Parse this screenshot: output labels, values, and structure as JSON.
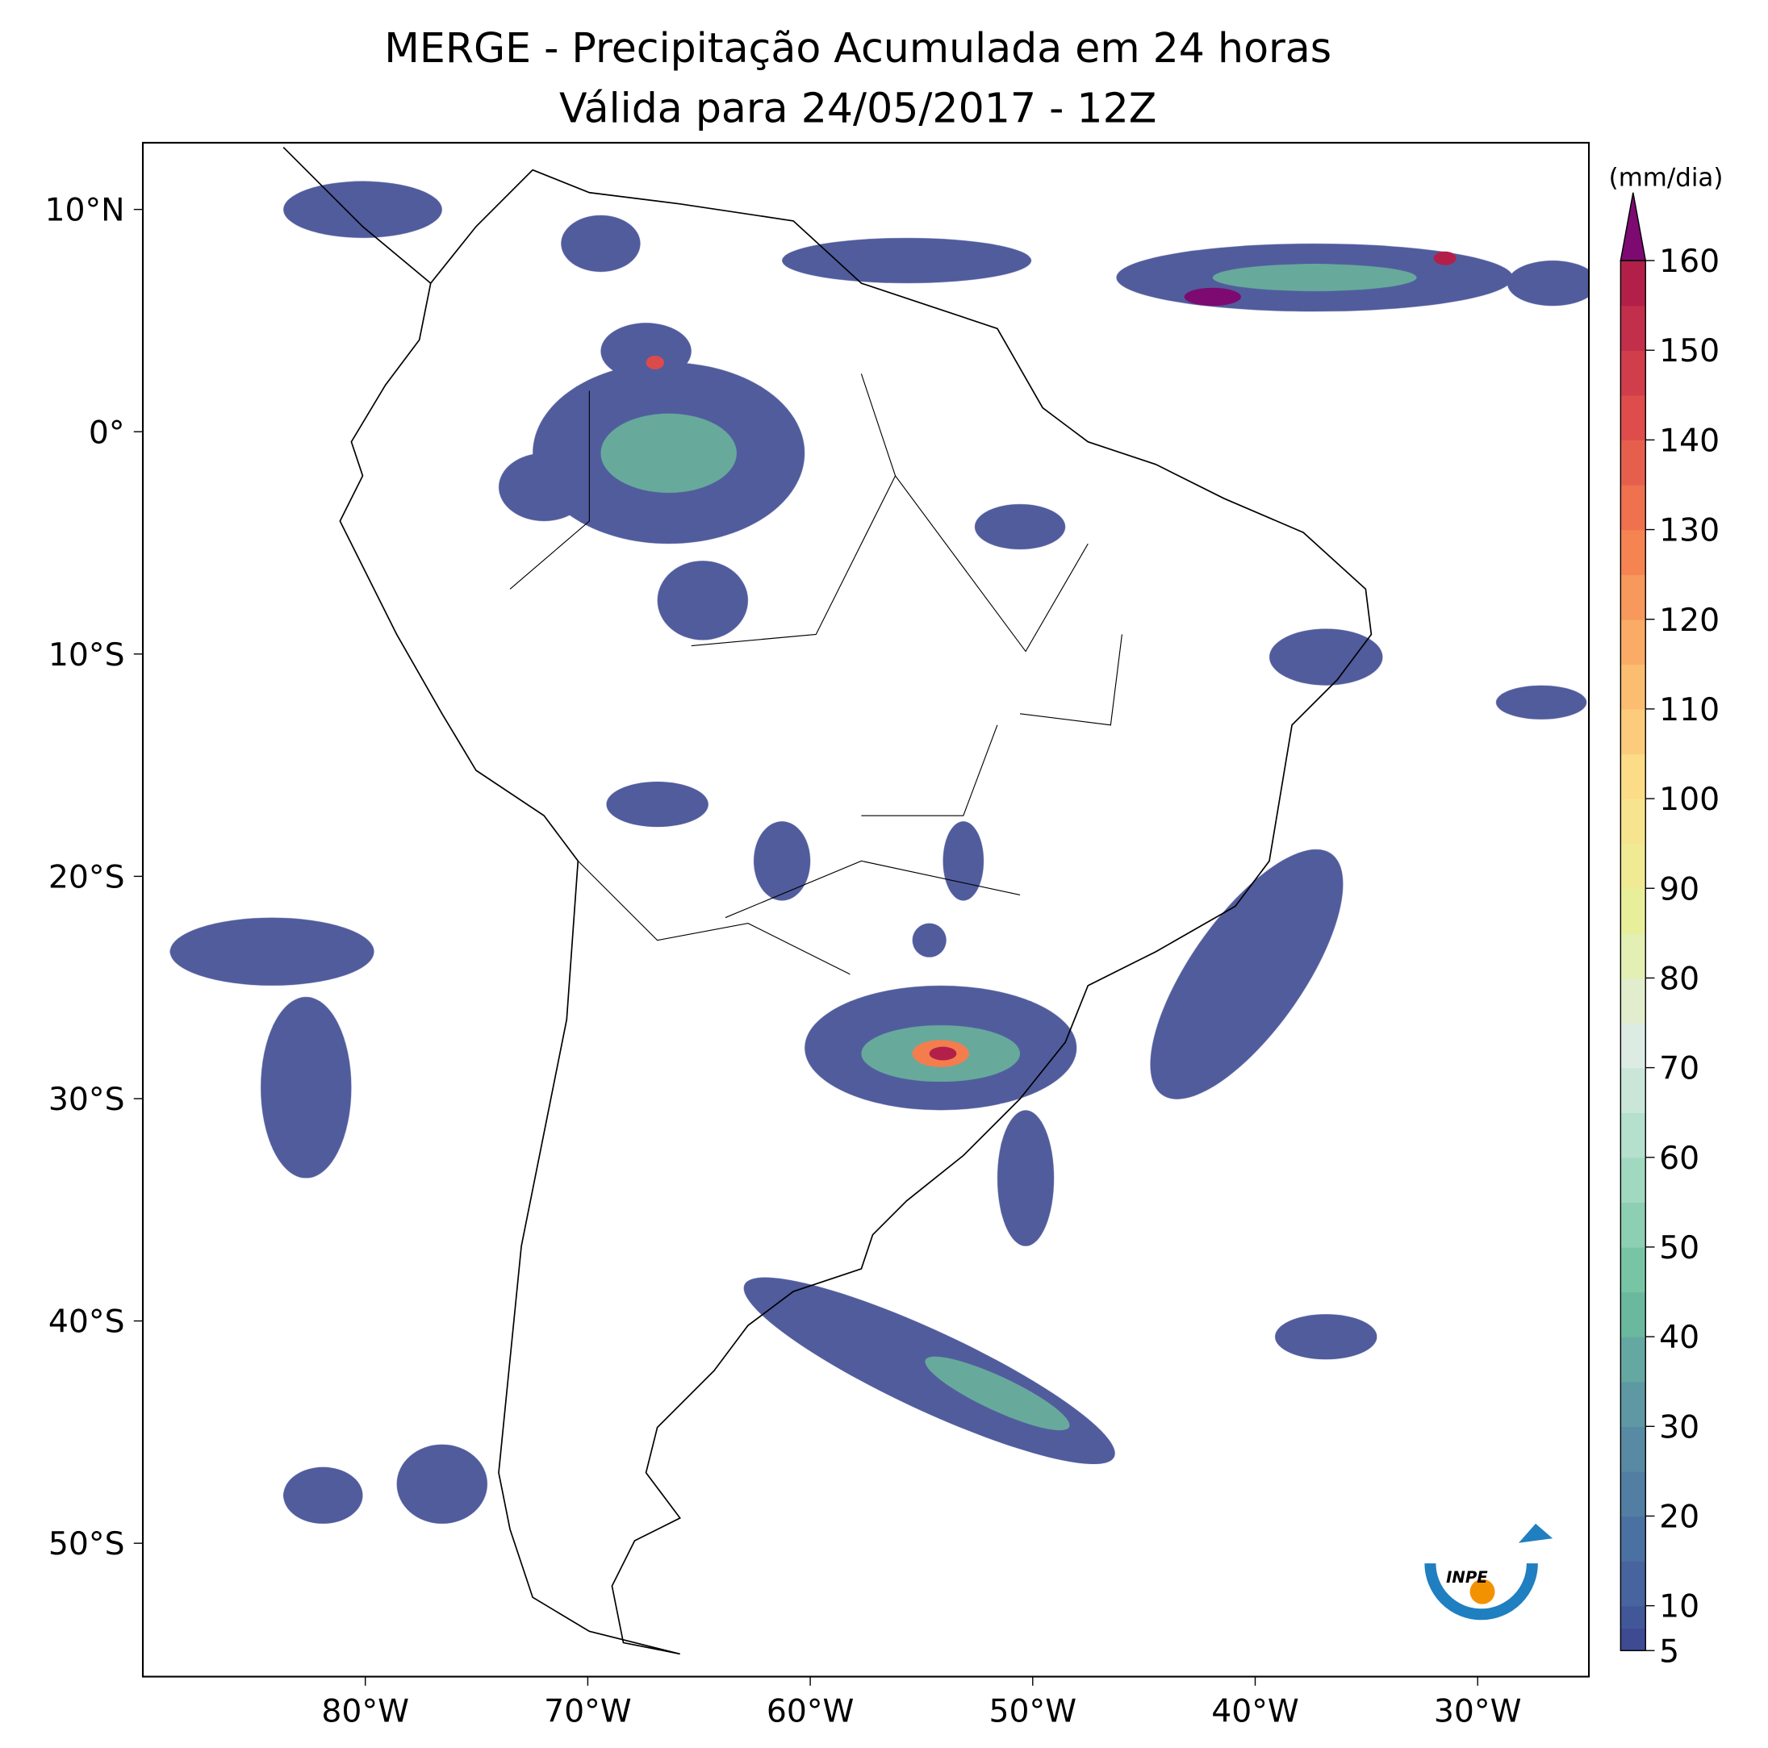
{
  "title": [
    "MERGE - Precipitação Acumulada em 24 horas",
    "Válida para 24/05/2017 - 12Z"
  ],
  "map": {
    "xlim": [
      -90,
      -25
    ],
    "ylim": [
      -56,
      13
    ],
    "xticks": [
      {
        "value": -80,
        "label": "80°W"
      },
      {
        "value": -70,
        "label": "70°W"
      },
      {
        "value": -60,
        "label": "60°W"
      },
      {
        "value": -50,
        "label": "50°W"
      },
      {
        "value": -40,
        "label": "40°W"
      },
      {
        "value": -30,
        "label": "30°W"
      }
    ],
    "yticks": [
      {
        "value": 10,
        "label": "10°N"
      },
      {
        "value": 0,
        "label": "0°"
      },
      {
        "value": -10,
        "label": "10°S"
      },
      {
        "value": -20,
        "label": "20°S"
      },
      {
        "value": -30,
        "label": "30°S"
      },
      {
        "value": -40,
        "label": "40°S"
      },
      {
        "value": -50,
        "label": "50°S"
      }
    ]
  },
  "colorbar": {
    "label": "(mm/dia)",
    "ticks": [
      5,
      10,
      20,
      30,
      40,
      50,
      60,
      70,
      80,
      90,
      100,
      110,
      120,
      130,
      140,
      150,
      160
    ],
    "colors": [
      "#3e4a92",
      "#4a6fa3",
      "#5c92a4",
      "#6dbf9d",
      "#a7dcc4",
      "#dfece6",
      "#e7f09a",
      "#fde08b",
      "#fbb46a",
      "#f47d4e",
      "#dc4a4c",
      "#b2204a"
    ],
    "over_color": "#7d0a71"
  },
  "logo": "INPE"
}
